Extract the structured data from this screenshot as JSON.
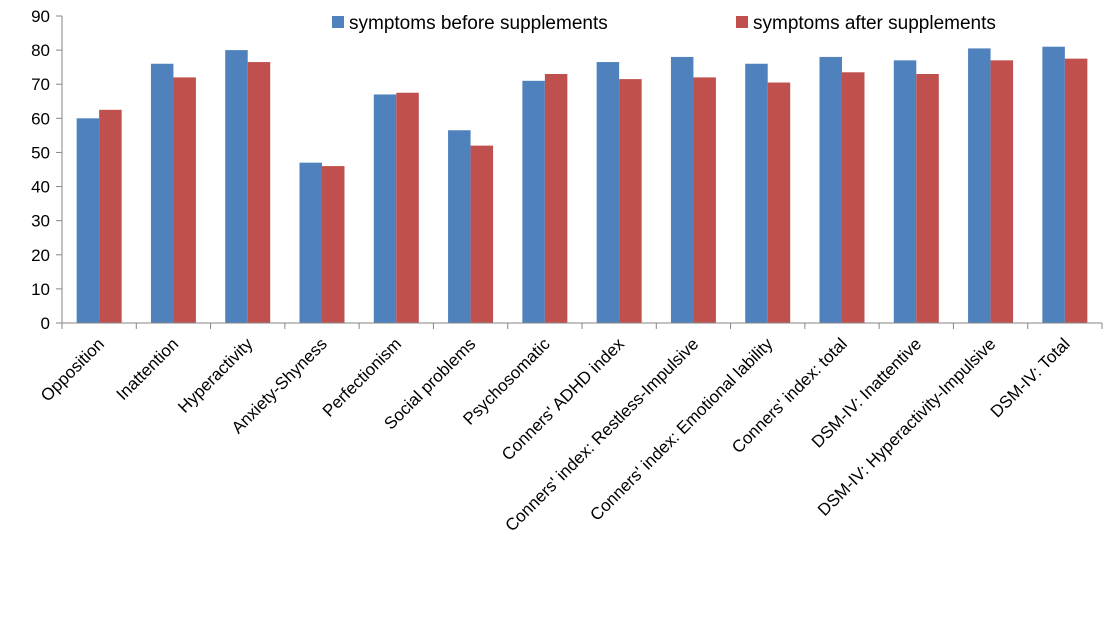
{
  "chart_data": {
    "type": "bar",
    "title": "",
    "xlabel": "",
    "ylabel": "",
    "ylim": [
      0,
      90
    ],
    "yticks": [
      0,
      10,
      20,
      30,
      40,
      50,
      60,
      70,
      80,
      90
    ],
    "grid": false,
    "legend_position": "top-right",
    "categories": [
      "Opposition",
      "Inattention",
      "Hyperactivity",
      "Anxiety-Shyness",
      "Perfectionism",
      "Social problems",
      "Psychosomatic",
      "Conners' ADHD index",
      "Conners' index: Restless-Impulsive",
      "Conners' index: Emotional lability",
      "Conners' index: total",
      "DSM-IV: Inattentive",
      "DSM-IV: Hyperactivity-Impulsive",
      "DSM-IV: Total"
    ],
    "series": [
      {
        "name": "symptoms before supplements",
        "color": "#4F81BD",
        "values": [
          60,
          76,
          80,
          47,
          67,
          56.5,
          71,
          76.5,
          78,
          76,
          78,
          77,
          80.5,
          81
        ]
      },
      {
        "name": "symptoms after supplements",
        "color": "#C0504D",
        "values": [
          62.5,
          72,
          76.5,
          46,
          67.5,
          52,
          73,
          71.5,
          72,
          70.5,
          73.5,
          73,
          77,
          77.5
        ]
      }
    ]
  }
}
